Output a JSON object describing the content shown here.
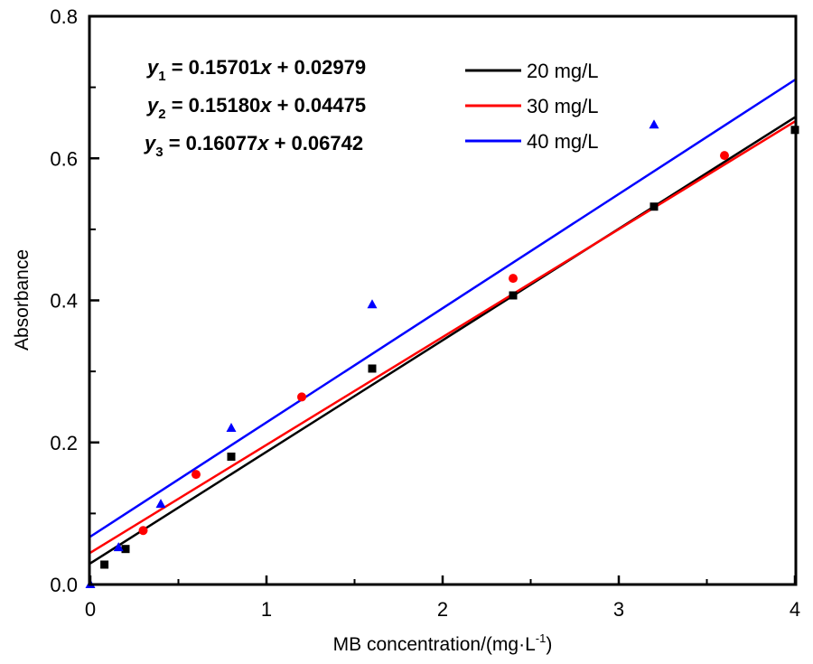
{
  "chart_data": {
    "type": "scatter",
    "title": "",
    "xlabel": "MB concentration/(mg·L",
    "xlabel_sup": "-1",
    "xlabel_end": ")",
    "ylabel": "Absorbance",
    "xlim": [
      0,
      4
    ],
    "ylim": [
      0,
      0.8
    ],
    "x_ticks": [
      "0",
      "1",
      "2",
      "3",
      "4"
    ],
    "x_tick_values": [
      0,
      1,
      2,
      3,
      4
    ],
    "x_minor_tick_values": [
      0.5,
      1.5,
      2.5,
      3.5
    ],
    "y_ticks": [
      "0.0",
      "0.2",
      "0.4",
      "0.6",
      "0.8"
    ],
    "y_tick_values": [
      0,
      0.2,
      0.4,
      0.6,
      0.8
    ],
    "y_minor_tick_values": [
      0.1,
      0.3,
      0.5,
      0.7
    ],
    "grid": false,
    "legend_position": "top-right",
    "series": [
      {
        "name": "20 mg/L",
        "color": "#000000",
        "marker": "square",
        "x": [
          0.08,
          0.2,
          0.8,
          1.6,
          2.4,
          3.2,
          4.0
        ],
        "y": [
          0.028,
          0.05,
          0.18,
          0.304,
          0.407,
          0.532,
          0.64
        ],
        "fit": {
          "slope": 0.15701,
          "intercept": 0.02979
        },
        "equation": {
          "var": "y",
          "sub": "1",
          "text": " = 0.15701",
          "xvar": "x",
          "rest": " + 0.02979"
        }
      },
      {
        "name": "30 mg/L",
        "color": "#ff0000",
        "marker": "circle",
        "x": [
          0.3,
          0.6,
          1.2,
          2.4,
          3.6
        ],
        "y": [
          0.076,
          0.155,
          0.264,
          0.431,
          0.604
        ],
        "fit": {
          "slope": 0.1518,
          "intercept": 0.04475
        },
        "equation": {
          "var": "y",
          "sub": "2",
          "text": " = 0.15180",
          "xvar": "x",
          "rest": " + 0.04475"
        }
      },
      {
        "name": "40 mg/L",
        "color": "#0000ff",
        "marker": "triangle",
        "x": [
          0,
          0.16,
          0.4,
          0.8,
          1.6,
          3.2
        ],
        "y": [
          0,
          0.052,
          0.113,
          0.22,
          0.394,
          0.647
        ],
        "fit": {
          "slope": 0.16077,
          "intercept": 0.06742
        },
        "equation": {
          "var": "y",
          "sub": "3",
          "text": " = 0.16077",
          "xvar": "x",
          "rest": " + 0.06742"
        }
      }
    ]
  }
}
